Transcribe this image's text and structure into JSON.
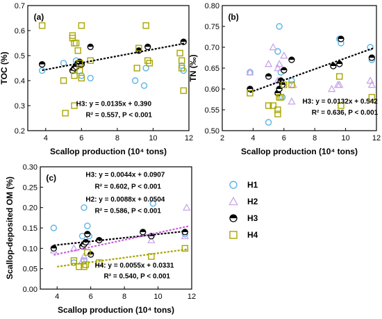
{
  "legend": {
    "items": [
      {
        "name": "H1",
        "color": "#5bb4e5",
        "marker": "circle"
      },
      {
        "name": "H2",
        "color": "#c9a6e8",
        "marker": "triangle"
      },
      {
        "name": "H3",
        "color": "#000000",
        "marker": "half-filled-circle"
      },
      {
        "name": "H4",
        "color": "#a7a500",
        "marker": "square"
      }
    ]
  },
  "chart_data": [
    {
      "panel": "(a)",
      "type": "scatter",
      "xlabel": "Scallop production (10⁴ tons)",
      "ylabel": "TOC (%)",
      "xlim": [
        3,
        12
      ],
      "ylim": [
        0.2,
        0.7
      ],
      "xticks": [
        4,
        6,
        8,
        10,
        12
      ],
      "yticks": [
        0.2,
        0.3,
        0.4,
        0.5,
        0.6,
        0.7
      ],
      "series": [
        {
          "name": "H1",
          "points": [
            [
              3.8,
              0.44
            ],
            [
              5.0,
              0.47
            ],
            [
              5.6,
              0.44
            ],
            [
              5.7,
              0.48
            ],
            [
              5.8,
              0.46
            ],
            [
              6.0,
              0.42
            ],
            [
              6.5,
              0.41
            ],
            [
              9.0,
              0.4
            ],
            [
              9.5,
              0.38
            ],
            [
              9.6,
              0.45
            ],
            [
              11.6,
              0.46
            ],
            [
              11.7,
              0.44
            ]
          ]
        },
        {
          "name": "H3",
          "points": [
            [
              3.8,
              0.465
            ],
            [
              5.5,
              0.44
            ],
            [
              5.6,
              0.45
            ],
            [
              5.7,
              0.455
            ],
            [
              5.8,
              0.47
            ],
            [
              5.9,
              0.475
            ],
            [
              6.0,
              0.465
            ],
            [
              6.5,
              0.535
            ],
            [
              9.2,
              0.52
            ],
            [
              9.7,
              0.535
            ],
            [
              11.7,
              0.555
            ]
          ]
        },
        {
          "name": "H4",
          "points": [
            [
              3.8,
              0.62
            ],
            [
              5.0,
              0.4
            ],
            [
              5.1,
              0.27
            ],
            [
              5.5,
              0.57
            ],
            [
              5.5,
              0.58
            ],
            [
              5.6,
              0.55
            ],
            [
              5.6,
              0.42
            ],
            [
              5.6,
              0.3
            ],
            [
              5.7,
              0.55
            ],
            [
              5.8,
              0.52
            ],
            [
              5.9,
              0.47
            ],
            [
              5.9,
              0.44
            ],
            [
              6.0,
              0.41
            ],
            [
              6.0,
              0.62
            ],
            [
              6.5,
              0.48
            ],
            [
              9.1,
              0.45
            ],
            [
              9.2,
              0.53
            ],
            [
              9.6,
              0.62
            ],
            [
              9.7,
              0.48
            ],
            [
              9.8,
              0.47
            ],
            [
              11.5,
              0.51
            ],
            [
              11.6,
              0.48
            ],
            [
              11.6,
              0.45
            ],
            [
              11.7,
              0.36
            ]
          ]
        }
      ],
      "fits": [
        {
          "series": "H3",
          "slope": 0.0135,
          "intercept": 0.39,
          "color": "#000000",
          "x_range": [
            3.8,
            11.8
          ]
        }
      ],
      "annotations": [
        "H3: y = 0.0135x + 0.390",
        "R² = 0.557, P < 0.001"
      ]
    },
    {
      "panel": "(b)",
      "type": "scatter",
      "xlabel": "Scallop production (10⁴ tons)",
      "ylabel": "TN (‰)",
      "xlim": [
        2,
        12
      ],
      "ylim": [
        0.5,
        0.8
      ],
      "xticks": [
        2,
        4,
        6,
        8,
        10,
        12
      ],
      "yticks": [
        0.5,
        0.55,
        0.6,
        0.65,
        0.7,
        0.75,
        0.8
      ],
      "series": [
        {
          "name": "H1",
          "points": [
            [
              3.8,
              0.64
            ],
            [
              5.0,
              0.52
            ],
            [
              5.6,
              0.69
            ],
            [
              5.7,
              0.75
            ],
            [
              5.8,
              0.64
            ],
            [
              5.9,
              0.58
            ],
            [
              6.5,
              0.62
            ],
            [
              9.6,
              0.72
            ],
            [
              9.7,
              0.71
            ],
            [
              11.6,
              0.7
            ],
            [
              11.7,
              0.67
            ]
          ]
        },
        {
          "name": "H2",
          "points": [
            [
              3.8,
              0.64
            ],
            [
              5.0,
              0.66
            ],
            [
              5.3,
              0.7
            ],
            [
              5.6,
              0.65
            ],
            [
              5.6,
              0.62
            ],
            [
              5.7,
              0.66
            ],
            [
              5.8,
              0.62
            ],
            [
              6.0,
              0.68
            ],
            [
              6.5,
              0.57
            ],
            [
              6.6,
              0.61
            ],
            [
              9.1,
              0.6
            ],
            [
              9.5,
              0.61
            ],
            [
              9.6,
              0.61
            ],
            [
              11.6,
              0.62
            ],
            [
              11.7,
              0.61
            ]
          ]
        },
        {
          "name": "H3",
          "points": [
            [
              3.8,
              0.6
            ],
            [
              5.0,
              0.63
            ],
            [
              5.6,
              0.59
            ],
            [
              5.7,
              0.6
            ],
            [
              5.8,
              0.62
            ],
            [
              5.9,
              0.61
            ],
            [
              6.0,
              0.645
            ],
            [
              6.5,
              0.67
            ],
            [
              9.2,
              0.655
            ],
            [
              9.6,
              0.66
            ],
            [
              9.7,
              0.72
            ],
            [
              11.7,
              0.675
            ]
          ]
        },
        {
          "name": "H4",
          "points": [
            [
              3.8,
              0.59
            ],
            [
              5.0,
              0.56
            ],
            [
              5.3,
              0.56
            ],
            [
              5.6,
              0.54
            ],
            [
              5.6,
              0.55
            ],
            [
              5.7,
              0.58
            ],
            [
              5.8,
              0.58
            ],
            [
              6.0,
              0.61
            ],
            [
              6.5,
              0.61
            ],
            [
              9.6,
              0.63
            ],
            [
              9.7,
              0.56
            ],
            [
              11.7,
              0.58
            ]
          ]
        }
      ],
      "fits": [
        {
          "series": "H3",
          "slope": 0.0132,
          "intercept": 0.542,
          "color": "#000000",
          "x_range": [
            3.8,
            11.8
          ]
        }
      ],
      "annotations": [
        "H3: y = 0.0132x + 0.542",
        "R² = 0.636, P < 0.001"
      ]
    },
    {
      "panel": "(c)",
      "type": "scatter",
      "xlabel": "Scallop production (10⁴ tons)",
      "ylabel": "Scallop-deposited OM (%)",
      "xlim": [
        3,
        12
      ],
      "ylim": [
        0,
        0.3
      ],
      "xticks": [
        4,
        6,
        8,
        10,
        12
      ],
      "yticks": [
        0.0,
        0.05,
        0.1,
        0.15,
        0.2,
        0.25,
        0.3
      ],
      "series": [
        {
          "name": "H1",
          "points": [
            [
              3.8,
              0.15
            ],
            [
              5.0,
              0.065
            ],
            [
              5.5,
              0.13
            ],
            [
              5.6,
              0.2
            ],
            [
              5.6,
              0.07
            ],
            [
              5.8,
              0.155
            ],
            [
              5.9,
              0.13
            ],
            [
              9.7,
              0.21
            ],
            [
              11.6,
              0.135
            ]
          ]
        },
        {
          "name": "H2",
          "points": [
            [
              3.8,
              0.095
            ],
            [
              5.0,
              0.1
            ],
            [
              5.5,
              0.07
            ],
            [
              5.6,
              0.08
            ],
            [
              5.8,
              0.115
            ],
            [
              9.6,
              0.12
            ],
            [
              11.6,
              0.13
            ],
            [
              11.7,
              0.2
            ]
          ]
        },
        {
          "name": "H3",
          "points": [
            [
              3.8,
              0.1
            ],
            [
              5.5,
              0.105
            ],
            [
              5.6,
              0.11
            ],
            [
              5.7,
              0.115
            ],
            [
              5.8,
              0.135
            ],
            [
              6.0,
              0.085
            ],
            [
              6.5,
              0.12
            ],
            [
              9.1,
              0.14
            ],
            [
              9.6,
              0.13
            ],
            [
              11.6,
              0.14
            ]
          ]
        },
        {
          "name": "H4",
          "points": [
            [
              5.0,
              0.07
            ],
            [
              5.3,
              0.055
            ],
            [
              5.6,
              0.055
            ],
            [
              5.7,
              0.06
            ],
            [
              5.8,
              0.09
            ],
            [
              6.5,
              0.065
            ],
            [
              9.6,
              0.08
            ],
            [
              11.6,
              0.1
            ]
          ]
        }
      ],
      "fits": [
        {
          "series": "H3",
          "slope": 0.0044,
          "intercept": 0.0907,
          "color": "#000000",
          "x_range": [
            3.8,
            11.8
          ]
        },
        {
          "series": "H2",
          "slope": 0.0088,
          "intercept": 0.0504,
          "color": "#c95fe0",
          "x_range": [
            3.8,
            11.8
          ]
        },
        {
          "series": "H4",
          "slope": 0.0055,
          "intercept": 0.0331,
          "color": "#a7a500",
          "x_range": [
            4.0,
            11.8
          ]
        }
      ],
      "annotations": [
        "H3: y = 0.0044x + 0.0907",
        "R² = 0.602, P < 0.001",
        "H2: y = 0.0088x + 0.0504",
        "R² = 0.586, P < 0.001",
        "H4: y = 0.0055x + 0.0331",
        "R² = 0.540, P < 0.001"
      ]
    }
  ]
}
